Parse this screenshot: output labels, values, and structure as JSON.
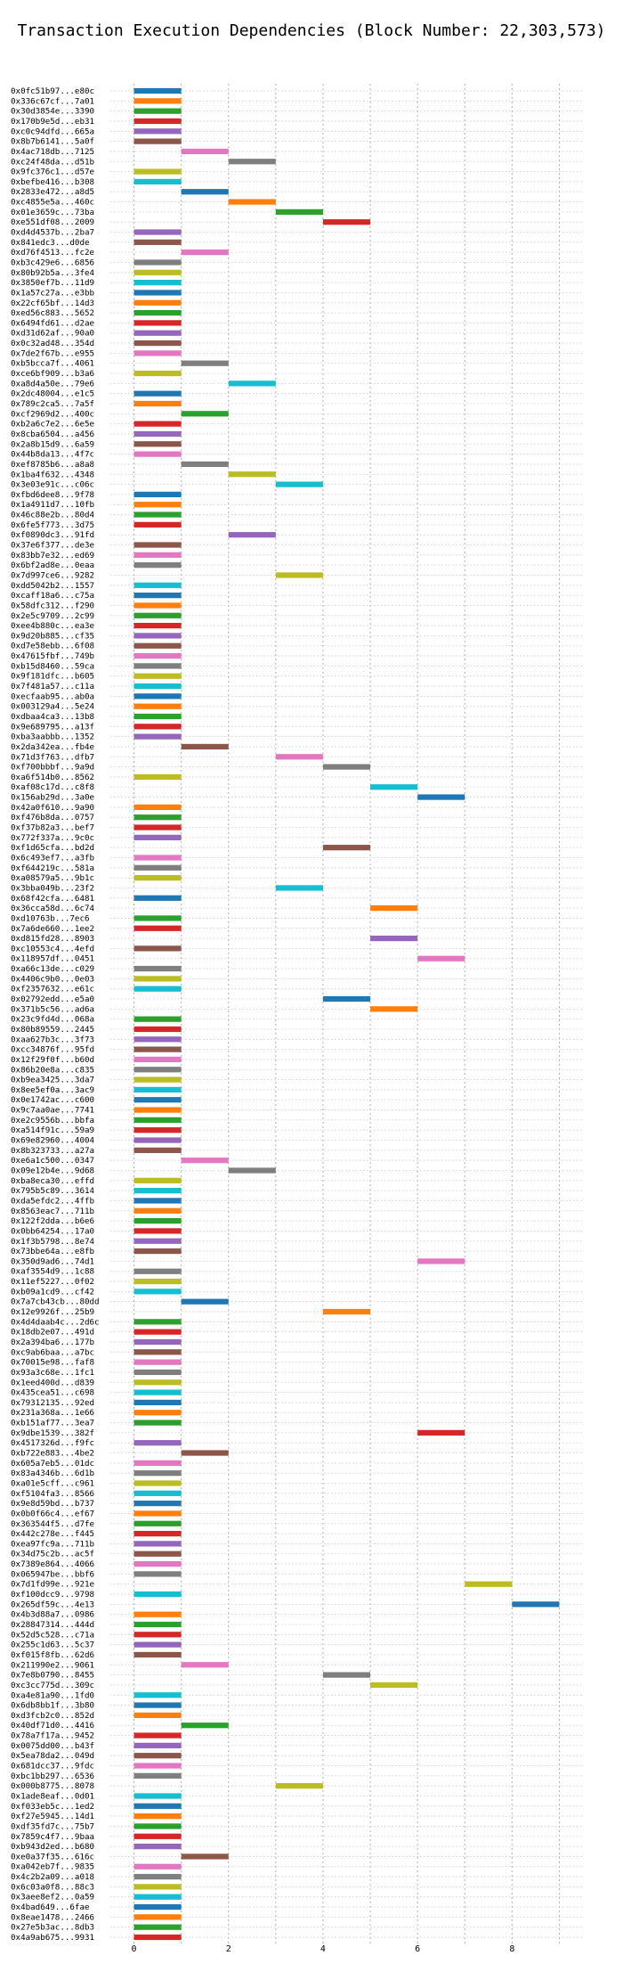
{
  "chart_data": {
    "type": "bar",
    "orientation": "horizontal-gantt",
    "title": "Transaction Execution Dependencies (Block Number: 22,303,573)",
    "xlabel": "",
    "ylabel": "",
    "xlim": [
      -0.5,
      9.5
    ],
    "x_ticks": [
      "0",
      "2",
      "4",
      "6",
      "8"
    ],
    "x_tick_values": [
      0,
      2,
      4,
      6,
      8
    ],
    "grid": "dotted vertical at every integer, dotted horizontal at every row",
    "bar_span": 1,
    "palette": [
      "#1f77b4",
      "#ff7f0e",
      "#2ca02c",
      "#d62728",
      "#9467bd",
      "#8c564b",
      "#e377c2",
      "#7f7f7f",
      "#bcbd22",
      "#17becf"
    ],
    "transactions": [
      {
        "label": "0x0fc51b97...e80c",
        "start": 0
      },
      {
        "label": "0x336c67cf...7a01",
        "start": 0
      },
      {
        "label": "0x30d3854e...3390",
        "start": 0
      },
      {
        "label": "0x170b9e5d...eb31",
        "start": 0
      },
      {
        "label": "0xc0c94dfd...665a",
        "start": 0
      },
      {
        "label": "0x8b7b6141...5a0f",
        "start": 0
      },
      {
        "label": "0x4ac718db...7125",
        "start": 1
      },
      {
        "label": "0xc24f48da...d51b",
        "start": 2
      },
      {
        "label": "0x9fc376c1...d57e",
        "start": 0
      },
      {
        "label": "0xbefbe416...b308",
        "start": 0
      },
      {
        "label": "0x2833e472...a8d5",
        "start": 1
      },
      {
        "label": "0xc4855e5a...460c",
        "start": 2
      },
      {
        "label": "0x01e3659c...73ba",
        "start": 3
      },
      {
        "label": "0xe551df08...2009",
        "start": 4
      },
      {
        "label": "0xd4d4537b...2ba7",
        "start": 0
      },
      {
        "label": "0x841edc3...d0de",
        "start": 0
      },
      {
        "label": "0xd76f4513...fc2e",
        "start": 1
      },
      {
        "label": "0xb3c429e6...6856",
        "start": 0
      },
      {
        "label": "0x80b92b5a...3fe4",
        "start": 0
      },
      {
        "label": "0x3850ef7b...11d9",
        "start": 0
      },
      {
        "label": "0x1a57c27a...e3bb",
        "start": 0
      },
      {
        "label": "0x22cf65bf...14d3",
        "start": 0
      },
      {
        "label": "0xed56c883...5652",
        "start": 0
      },
      {
        "label": "0x6494fd61...d2ae",
        "start": 0
      },
      {
        "label": "0xd31d62af...90a0",
        "start": 0
      },
      {
        "label": "0x0c32ad48...354d",
        "start": 0
      },
      {
        "label": "0x7de2f67b...e955",
        "start": 0
      },
      {
        "label": "0xb5bcca7f...4061",
        "start": 1
      },
      {
        "label": "0xce6bf909...b3a6",
        "start": 0
      },
      {
        "label": "0xa8d4a50e...79e6",
        "start": 2
      },
      {
        "label": "0x2dc48004...e1c5",
        "start": 0
      },
      {
        "label": "0x789c2ca5...7a5f",
        "start": 0
      },
      {
        "label": "0xcf2969d2...400c",
        "start": 1
      },
      {
        "label": "0xb2a6c7e2...6e5e",
        "start": 0
      },
      {
        "label": "0x8cba6504...a456",
        "start": 0
      },
      {
        "label": "0x2a8b15d9...6a59",
        "start": 0
      },
      {
        "label": "0x44b8da13...4f7c",
        "start": 0
      },
      {
        "label": "0xef8785b6...a8a8",
        "start": 1
      },
      {
        "label": "0x1ba4f632...4348",
        "start": 2
      },
      {
        "label": "0x3e03e91c...c06c",
        "start": 3
      },
      {
        "label": "0xfbd6dee8...9f78",
        "start": 0
      },
      {
        "label": "0x1a4911d7...10fb",
        "start": 0
      },
      {
        "label": "0x46c88e2b...80d4",
        "start": 0
      },
      {
        "label": "0x6fe5f773...3d75",
        "start": 0
      },
      {
        "label": "0xf0890dc3...91fd",
        "start": 2
      },
      {
        "label": "0x37e6f377...de3e",
        "start": 0
      },
      {
        "label": "0x83bb7e32...ed69",
        "start": 0
      },
      {
        "label": "0x6bf2ad8e...0eaa",
        "start": 0
      },
      {
        "label": "0x7d997ce6...9282",
        "start": 3
      },
      {
        "label": "0xdd5042b2...1557",
        "start": 0
      },
      {
        "label": "0xcaff18a6...c75a",
        "start": 0
      },
      {
        "label": "0x58dfc312...f290",
        "start": 0
      },
      {
        "label": "0x2e5c9709...2c99",
        "start": 0
      },
      {
        "label": "0xee4b880c...ea3e",
        "start": 0
      },
      {
        "label": "0x9d20b885...cf35",
        "start": 0
      },
      {
        "label": "0xd7e58ebb...6f08",
        "start": 0
      },
      {
        "label": "0x47615fbf...749b",
        "start": 0
      },
      {
        "label": "0xb15d8460...59ca",
        "start": 0
      },
      {
        "label": "0x9f181dfc...b605",
        "start": 0
      },
      {
        "label": "0x7f481a57...c11a",
        "start": 0
      },
      {
        "label": "0xecfaab95...ab0a",
        "start": 0
      },
      {
        "label": "0x003129a4...5e24",
        "start": 0
      },
      {
        "label": "0xdbaa4ca3...13b8",
        "start": 0
      },
      {
        "label": "0x9e689795...a13f",
        "start": 0
      },
      {
        "label": "0xba3aabbb...1352",
        "start": 0
      },
      {
        "label": "0x2da342ea...fb4e",
        "start": 1
      },
      {
        "label": "0x71d3f763...dfb7",
        "start": 3
      },
      {
        "label": "0xf700bbbf...9a9d",
        "start": 4
      },
      {
        "label": "0xa6f514b0...8562",
        "start": 0
      },
      {
        "label": "0xaf08c17d...c8f8",
        "start": 5
      },
      {
        "label": "0x156ab29d...3a0e",
        "start": 6
      },
      {
        "label": "0x42a0f610...9a90",
        "start": 0
      },
      {
        "label": "0xf476b8da...0757",
        "start": 0
      },
      {
        "label": "0xf37b82a3...bef7",
        "start": 0
      },
      {
        "label": "0x772f337a...9c0c",
        "start": 0
      },
      {
        "label": "0xf1d65cfa...bd2d",
        "start": 4
      },
      {
        "label": "0x6c493ef7...a3fb",
        "start": 0
      },
      {
        "label": "0xf644219c...581a",
        "start": 0
      },
      {
        "label": "0xa08579a5...9b1c",
        "start": 0
      },
      {
        "label": "0x3bba049b...23f2",
        "start": 3
      },
      {
        "label": "0x68f42cfa...6481",
        "start": 0
      },
      {
        "label": "0x36cca58d...6c74",
        "start": 5
      },
      {
        "label": "0xd10763b...7ec6",
        "start": 0
      },
      {
        "label": "0x7a6de660...1ee2",
        "start": 0
      },
      {
        "label": "0xd815fd28...8903",
        "start": 5
      },
      {
        "label": "0xc10553c4...4efd",
        "start": 0
      },
      {
        "label": "0x118957df...0451",
        "start": 6
      },
      {
        "label": "0xa66c13de...c029",
        "start": 0
      },
      {
        "label": "0x4406c9b0...0e03",
        "start": 0
      },
      {
        "label": "0xf2357632...e61c",
        "start": 0
      },
      {
        "label": "0x02792edd...e5a0",
        "start": 4
      },
      {
        "label": "0x371b5c56...ad6a",
        "start": 5
      },
      {
        "label": "0x23c9fd4d...068a",
        "start": 0
      },
      {
        "label": "0x80b89559...2445",
        "start": 0
      },
      {
        "label": "0xaa627b3c...3f73",
        "start": 0
      },
      {
        "label": "0xcc34876f...95fd",
        "start": 0
      },
      {
        "label": "0x12f29f0f...b60d",
        "start": 0
      },
      {
        "label": "0x86b20e8a...c835",
        "start": 0
      },
      {
        "label": "0xb9ea3425...3da7",
        "start": 0
      },
      {
        "label": "0x8ee5ef0a...3ac9",
        "start": 0
      },
      {
        "label": "0x0e1742ac...c600",
        "start": 0
      },
      {
        "label": "0x9c7aa0ae...7741",
        "start": 0
      },
      {
        "label": "0xe2c9556b...bbfa",
        "start": 0
      },
      {
        "label": "0xa514f91c...59a9",
        "start": 0
      },
      {
        "label": "0x69e82960...4004",
        "start": 0
      },
      {
        "label": "0x8b323733...a27a",
        "start": 0
      },
      {
        "label": "0xe6a1c500...0347",
        "start": 1
      },
      {
        "label": "0x09e12b4e...9d68",
        "start": 2
      },
      {
        "label": "0xba8eca30...effd",
        "start": 0
      },
      {
        "label": "0x795b5c89...3614",
        "start": 0
      },
      {
        "label": "0xda5efdc2...4ffb",
        "start": 0
      },
      {
        "label": "0x8563eac7...711b",
        "start": 0
      },
      {
        "label": "0x122f2dda...b6e6",
        "start": 0
      },
      {
        "label": "0x0bb64254...17a0",
        "start": 0
      },
      {
        "label": "0x1f3b5798...8e74",
        "start": 0
      },
      {
        "label": "0x73bbe64a...e8fb",
        "start": 0
      },
      {
        "label": "0x350d9ad6...74d1",
        "start": 6
      },
      {
        "label": "0xaf3554d9...1c88",
        "start": 0
      },
      {
        "label": "0x11ef5227...0f02",
        "start": 0
      },
      {
        "label": "0xb09a1cd9...cf42",
        "start": 0
      },
      {
        "label": "0x7a7cb43cb...80dd",
        "start": 1
      },
      {
        "label": "0x12e9926f...25b9",
        "start": 4
      },
      {
        "label": "0x4d4daab4c...2d6c",
        "start": 0
      },
      {
        "label": "0x18db2e07...491d",
        "start": 0
      },
      {
        "label": "0x2a394ba6...177b",
        "start": 0
      },
      {
        "label": "0xc9ab6baa...a7bc",
        "start": 0
      },
      {
        "label": "0x70015e98...faf8",
        "start": 0
      },
      {
        "label": "0x93a3c68e...1fc1",
        "start": 0
      },
      {
        "label": "0x1eed400d...d839",
        "start": 0
      },
      {
        "label": "0x435cea51...c698",
        "start": 0
      },
      {
        "label": "0x79312135...92ed",
        "start": 0
      },
      {
        "label": "0x231a368a...1e66",
        "start": 0
      },
      {
        "label": "0xb151af77...3ea7",
        "start": 0
      },
      {
        "label": "0x9dbe1539...382f",
        "start": 6
      },
      {
        "label": "0x4517326d...f9fc",
        "start": 0
      },
      {
        "label": "0xb722e883...4be2",
        "start": 1
      },
      {
        "label": "0x605a7eb5...01dc",
        "start": 0
      },
      {
        "label": "0x83a4346b...6d1b",
        "start": 0
      },
      {
        "label": "0xa01e5cff...c961",
        "start": 0
      },
      {
        "label": "0xf5104fa3...8566",
        "start": 0
      },
      {
        "label": "0x9e8d59bd...b737",
        "start": 0
      },
      {
        "label": "0x0b0f66c4...ef67",
        "start": 0
      },
      {
        "label": "0x363544f5...d7fe",
        "start": 0
      },
      {
        "label": "0x442c278e...f445",
        "start": 0
      },
      {
        "label": "0xea97fc9a...711b",
        "start": 0
      },
      {
        "label": "0x34d75c2b...ac5f",
        "start": 0
      },
      {
        "label": "0x7389e864...4066",
        "start": 0
      },
      {
        "label": "0x065947be...bbf6",
        "start": 0
      },
      {
        "label": "0x7d1fd99e...921e",
        "start": 7
      },
      {
        "label": "0xf100dcc9...9798",
        "start": 0
      },
      {
        "label": "0x265df59c...4e13",
        "start": 8
      },
      {
        "label": "0x4b3d88a7...0986",
        "start": 0
      },
      {
        "label": "0x28847314...444d",
        "start": 0
      },
      {
        "label": "0x52d5c528...c71a",
        "start": 0
      },
      {
        "label": "0x255c1d63...5c37",
        "start": 0
      },
      {
        "label": "0xf015f8fb...62d6",
        "start": 0
      },
      {
        "label": "0x211990e2...9061",
        "start": 1
      },
      {
        "label": "0x7e8b0790...8455",
        "start": 4
      },
      {
        "label": "0xc3cc775d...309c",
        "start": 5
      },
      {
        "label": "0xa4e81a90...1fd0",
        "start": 0
      },
      {
        "label": "0x6db8bb1f...3b80",
        "start": 0
      },
      {
        "label": "0xd3fcb2c0...852d",
        "start": 0
      },
      {
        "label": "0x40df71d0...4416",
        "start": 1
      },
      {
        "label": "0x78a7f17a...9452",
        "start": 0
      },
      {
        "label": "0x0075dd00...b43f",
        "start": 0
      },
      {
        "label": "0x5ea78da2...049d",
        "start": 0
      },
      {
        "label": "0x681dcc37...9fdc",
        "start": 0
      },
      {
        "label": "0xbc1bb297...6536",
        "start": 0
      },
      {
        "label": "0x000b8775...8078",
        "start": 3
      },
      {
        "label": "0x1ade8eaf...0d01",
        "start": 0
      },
      {
        "label": "0xf033eb5c...1ed2",
        "start": 0
      },
      {
        "label": "0xf27e5945...14d1",
        "start": 0
      },
      {
        "label": "0xdf35fd7c...75b7",
        "start": 0
      },
      {
        "label": "0x7859c4f7...9baa",
        "start": 0
      },
      {
        "label": "0xb943d2ed...b680",
        "start": 0
      },
      {
        "label": "0xe0a37f35...616c",
        "start": 1
      },
      {
        "label": "0xa042eb7f...9835",
        "start": 0
      },
      {
        "label": "0x4c2b2a09...a018",
        "start": 0
      },
      {
        "label": "0x6c03a0f8...88c3",
        "start": 0
      },
      {
        "label": "0x3aee8ef2...0a59",
        "start": 0
      },
      {
        "label": "0x4bad649...6fae",
        "start": 0
      },
      {
        "label": "0x8eae1478...2466",
        "start": 0
      },
      {
        "label": "0x27e5b3ac...8db3",
        "start": 0
      },
      {
        "label": "0x4a9ab675...9931",
        "start": 0
      }
    ]
  }
}
